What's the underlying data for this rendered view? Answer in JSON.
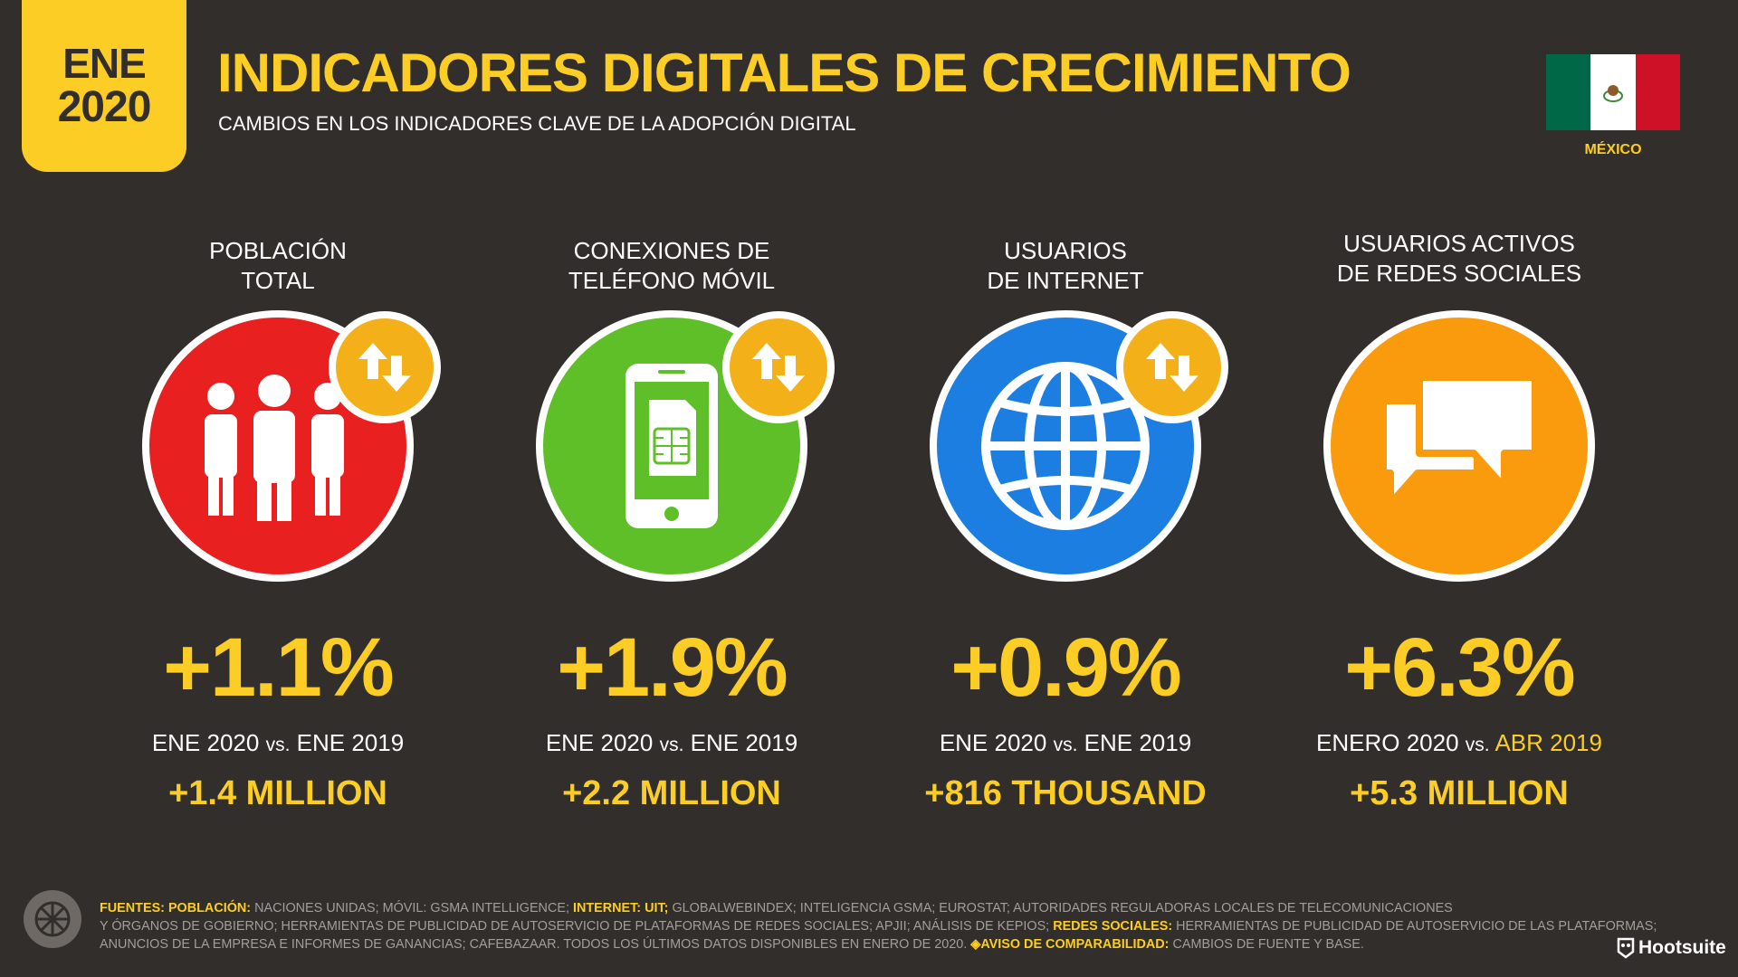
{
  "header": {
    "badge_month": "ENE",
    "badge_year": "2020",
    "title": "INDICADORES DIGITALES DE CRECIMIENTO",
    "subtitle": "CAMBIOS EN LOS INDICADORES CLAVE DE LA ADOPCIÓN DIGITAL",
    "country": "MÉXICO",
    "flag_colors": [
      "#006847",
      "#ffffff",
      "#ce1126"
    ]
  },
  "metrics": [
    {
      "label": "POBLACIÓN\nTOTAL",
      "icon": "people-icon",
      "color": "#e8201f",
      "trend_icon": "up-down-arrows-icon",
      "percent": "+1.1%",
      "period_a": "ENE 2020",
      "vs": "vs.",
      "period_b": "ENE 2019",
      "absolute": "+1.4 MILLION"
    },
    {
      "label": "CONEXIONES DE\nTELÉFONO MÓVIL",
      "icon": "mobile-phone-icon",
      "color": "#5fbf28",
      "trend_icon": "up-down-arrows-icon",
      "percent": "+1.9%",
      "period_a": "ENE 2020",
      "vs": "vs.",
      "period_b": "ENE 2019",
      "absolute": "+2.2 MILLION"
    },
    {
      "label": "USUARIOS\nDE INTERNET",
      "icon": "globe-icon",
      "color": "#1d7ee2",
      "trend_icon": "up-down-arrows-icon",
      "percent": "+0.9%",
      "period_a": "ENE 2020",
      "vs": "vs.",
      "period_b": "ENE 2019",
      "absolute": "+816 THOUSAND"
    },
    {
      "label": "USUARIOS ACTIVOS\nDE REDES SOCIALES",
      "icon": "chat-bubbles-icon",
      "color": "#f99b0c",
      "percent": "+6.3%",
      "period_a": "ENERO 2020",
      "vs": "vs.",
      "period_b": "ABR 2019",
      "absolute": "+5.3 MILLION"
    }
  ],
  "footer": {
    "line1": [
      {
        "text": "FUENTES: POBLACIÓN:",
        "hl": true
      },
      {
        "text": " NACIONES UNIDAS; MÓVIL: GSMA INTELLIGENCE; ",
        "hl": false
      },
      {
        "text": "INTERNET: UIT;",
        "hl": true
      },
      {
        "text": " GLOBALWEBINDEX; INTELIGENCIA GSMA; EUROSTAT; AUTORIDADES REGULADORAS LOCALES DE TELECOMUNICACIONES",
        "hl": false
      }
    ],
    "line2": [
      {
        "text": "Y ÓRGANOS DE GOBIERNO; HERRAMIENTAS DE PUBLICIDAD DE AUTOSERVICIO DE PLATAFORMAS DE REDES SOCIALES; APJII; ANÁLISIS DE KEPIOS; ",
        "hl": false
      },
      {
        "text": "REDES SOCIALES:",
        "hl": true
      },
      {
        "text": " HERRAMIENTAS DE PUBLICIDAD DE AUTOSERVICIO DE LAS PLATAFORMAS;",
        "hl": false
      }
    ],
    "line3": [
      {
        "text": "ANUNCIOS DE LA EMPRESA E INFORMES DE GANANCIAS; CAFEBAZAAR. TODOS LOS ÚLTIMOS DATOS DISPONIBLES EN ENERO DE 2020. ",
        "hl": false
      },
      {
        "text": "◈AVISO DE COMPARABILIDAD:",
        "hl": true
      },
      {
        "text": " CAMBIOS DE FUENTE Y BASE.",
        "hl": false
      }
    ],
    "brand": "Hootsuite"
  }
}
